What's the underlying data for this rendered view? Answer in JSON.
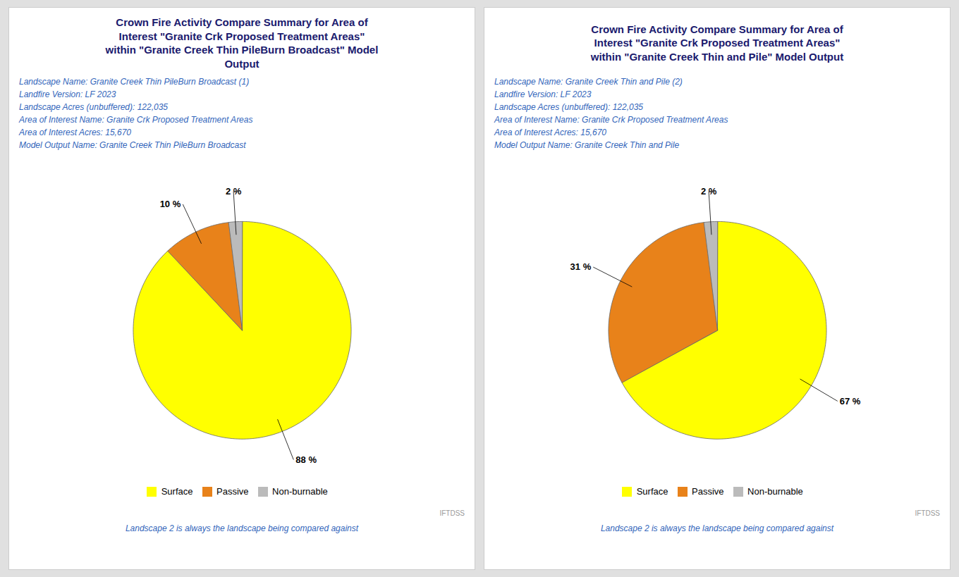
{
  "chart_data": [
    {
      "type": "pie",
      "title": "Crown Fire Activity Compare Summary for Area of\nInterest \"Granite Crk Proposed Treatment Areas\"\nwithin \"Granite Creek Thin PileBurn Broadcast\" Model\nOutput",
      "subtitle": [
        "Landscape Name: Granite Creek Thin PileBurn Broadcast (1)",
        "Landfire Version: LF 2023",
        "Landscape Acres (unbuffered): 122,035",
        "Area of Interest Name: Granite Crk Proposed Treatment Areas",
        "Area of Interest Acres: 15,670",
        "Model Output Name: Granite Creek Thin PileBurn Broadcast"
      ],
      "categories": [
        "Surface",
        "Passive",
        "Non-burnable"
      ],
      "values": [
        88,
        10,
        2
      ],
      "value_labels": [
        "88 %",
        "10 %",
        "2 %"
      ],
      "colors": [
        "#FFFF00",
        "#E8821A",
        "#BBBBBB"
      ],
      "data_labels": true,
      "legend": "bottom",
      "annotations": [
        "Landscape 2 is always the landscape being compared against",
        "IFTDSS"
      ]
    },
    {
      "type": "pie",
      "title": "Crown Fire Activity Compare Summary for Area of\nInterest \"Granite Crk Proposed Treatment Areas\"\nwithin \"Granite Creek Thin and Pile\" Model Output",
      "subtitle": [
        "Landscape Name: Granite Creek Thin and Pile (2)",
        "Landfire Version: LF 2023",
        "Landscape Acres (unbuffered): 122,035",
        "Area of Interest Name: Granite Crk Proposed Treatment Areas",
        "Area of Interest Acres: 15,670",
        "Model Output Name: Granite Creek Thin and Pile"
      ],
      "categories": [
        "Surface",
        "Passive",
        "Non-burnable"
      ],
      "values": [
        67,
        31,
        2
      ],
      "value_labels": [
        "67 %",
        "31 %",
        "2 %"
      ],
      "colors": [
        "#FFFF00",
        "#E8821A",
        "#BBBBBB"
      ],
      "data_labels": true,
      "legend": "bottom",
      "annotations": [
        "Landscape 2 is always the landscape being compared against",
        "IFTDSS"
      ]
    }
  ]
}
